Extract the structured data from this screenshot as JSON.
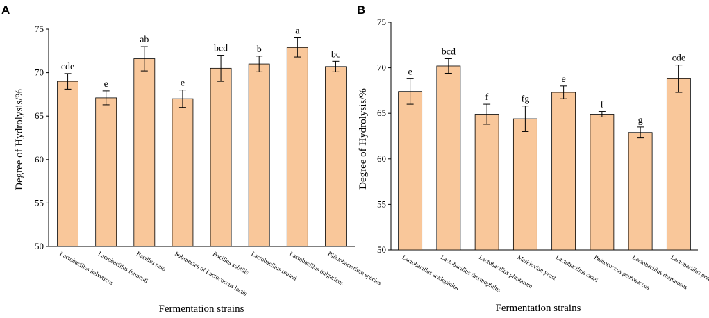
{
  "chart_data": [
    {
      "type": "bar",
      "panel": "A",
      "xlabel": "Fermentation strains",
      "ylabel": "Degree of Hydrolysis/%",
      "ylim": [
        50,
        75
      ],
      "yticks": [
        50,
        55,
        60,
        65,
        70,
        75
      ],
      "bar_color": "#f9c79a",
      "categories": [
        "Lactobacillus helveticus",
        "Lactobacillus fermenti",
        "Bacillus nato",
        "Subspecies of Lactococcus lactis",
        "Bacillus subtilis",
        "Lactobacillus reuteri",
        "Lactobacillus bulgaricus",
        "Bifidobacterium species"
      ],
      "values": [
        69.0,
        67.1,
        71.6,
        67.0,
        70.5,
        71.0,
        72.9,
        70.7
      ],
      "errors": [
        0.9,
        0.8,
        1.4,
        1.0,
        1.5,
        0.9,
        1.1,
        0.6
      ],
      "significance": [
        "cde",
        "e",
        "ab",
        "e",
        "bcd",
        "b",
        "a",
        "bc"
      ]
    },
    {
      "type": "bar",
      "panel": "B",
      "xlabel": "Fermentation strains",
      "ylabel": "Degree of Hydrolysis/%",
      "ylim": [
        50,
        75
      ],
      "yticks": [
        50,
        55,
        60,
        65,
        70,
        75
      ],
      "bar_color": "#f9c79a",
      "categories": [
        "Lactobacillus acidophilus",
        "Lactobacillus thermophilus",
        "Lactobacillus plantarum",
        "Markluvian yeast",
        "Lactobacillus casei",
        "Pediococcus pentosaceus",
        "Lactobacillus rhamnosus",
        "Lactobacillus paracasei"
      ],
      "values": [
        67.4,
        70.2,
        64.9,
        64.4,
        67.3,
        64.9,
        62.9,
        68.8
      ],
      "errors": [
        1.4,
        0.8,
        1.1,
        1.4,
        0.7,
        0.3,
        0.6,
        1.5
      ],
      "significance": [
        "e",
        "bcd",
        "f",
        "fg",
        "e",
        "f",
        "g",
        "cde"
      ]
    }
  ]
}
